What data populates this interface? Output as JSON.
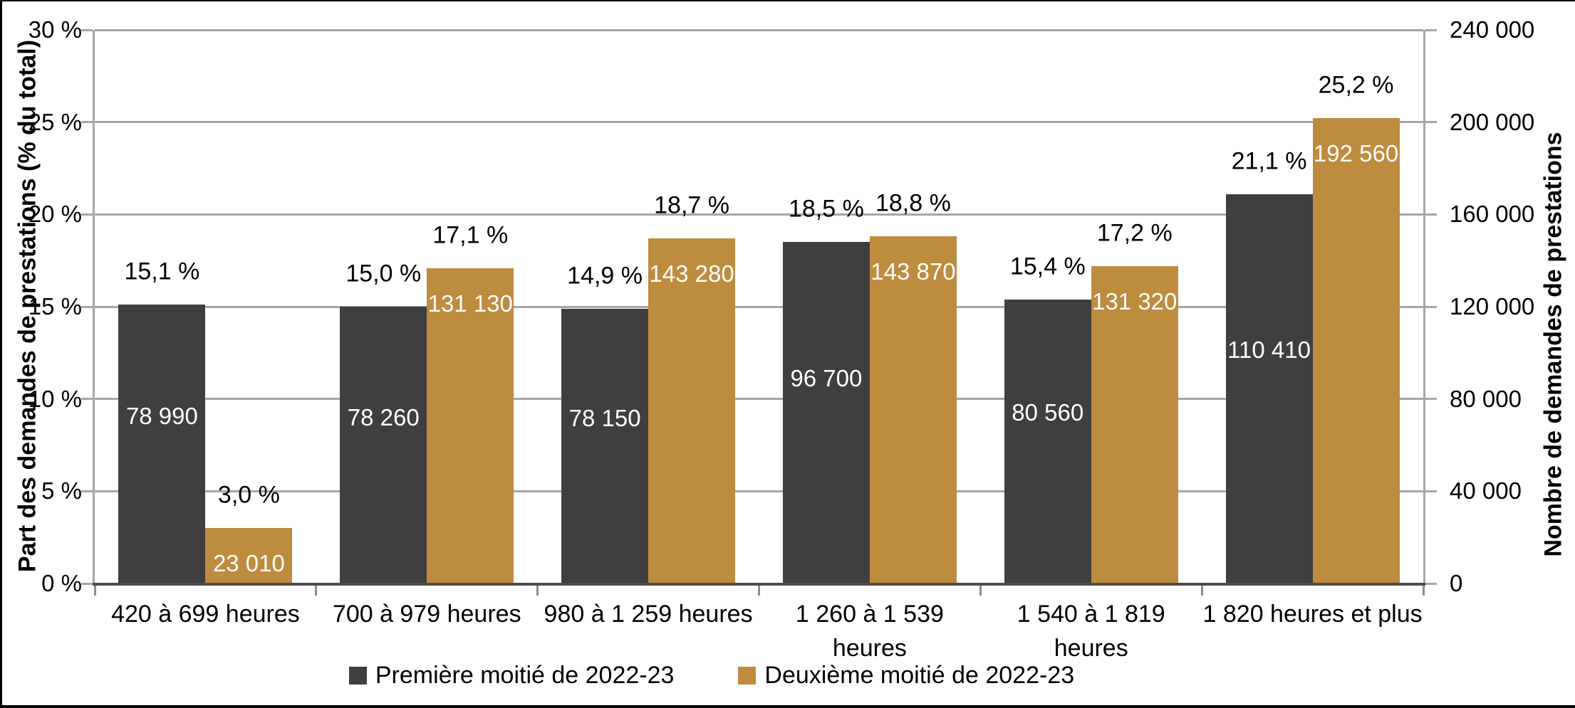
{
  "chart_data": {
    "type": "bar",
    "title": "",
    "categories": [
      "420 à 699 heures",
      "700 à 979 heures",
      "980 à 1 259 heures",
      "1 260 à 1 539\nheures",
      "1 540 à 1 819\nheures",
      "1 820 heures et plus"
    ],
    "series": [
      {
        "name": "Première moitié de 2022-23",
        "color": "#3F3F3F",
        "values_pct": [
          15.1,
          15.0,
          14.9,
          18.5,
          15.4,
          21.1
        ],
        "pct_labels": [
          "15,1 %",
          "15,0 %",
          "14,9 %",
          "18,5 %",
          "15,4 %",
          "21,1 %"
        ],
        "counts": [
          78990,
          78260,
          78150,
          96700,
          80560,
          110410
        ],
        "count_labels": [
          "78 990",
          "78 260",
          "78 150",
          "96 700",
          "80 560",
          "110 410"
        ]
      },
      {
        "name": "Deuxième moitié de 2022-23",
        "color": "#BE8C3E",
        "values_pct": [
          3.0,
          17.1,
          18.7,
          18.8,
          17.2,
          25.2
        ],
        "pct_labels": [
          "3,0 %",
          "17,1 %",
          "18,7 %",
          "18,8 %",
          "17,2 %",
          "25,2 %"
        ],
        "counts": [
          23010,
          131130,
          143280,
          143870,
          131320,
          192560
        ],
        "count_labels": [
          "23 010",
          "131 130",
          "143 280",
          "143 870",
          "131 320",
          "192 560"
        ]
      }
    ],
    "left_axis": {
      "title": "Part des demandes de prestations (% du total)",
      "min": 0,
      "max": 30,
      "tick_step": 5,
      "tick_labels": [
        "0 %",
        "5 %",
        "10 %",
        "15 %",
        "20 %",
        "25 %",
        "30 %"
      ]
    },
    "right_axis": {
      "title": "Nombre de demandes de prestations",
      "min": 0,
      "max": 240000,
      "tick_step": 40000,
      "tick_labels": [
        "0",
        "40 000",
        "80 000",
        "120 000",
        "160 000",
        "200 000",
        "240 000"
      ]
    },
    "legend": {
      "position": "bottom",
      "entries": [
        "Première moitié de 2022-23",
        "Deuxième moitié de 2022-23"
      ]
    },
    "grid": true,
    "colors": {
      "dark_series": "#3F3F3F",
      "gold_series": "#BE8C3E",
      "gridline": "#A6A6A6",
      "axis_line": "#A6A6A6",
      "baseline": "#4D4D4D",
      "frame_border": "#000000",
      "background": "#FFFFFF",
      "bar_label_text": "#FFFFFF",
      "outside_label_text": "#000000"
    }
  }
}
